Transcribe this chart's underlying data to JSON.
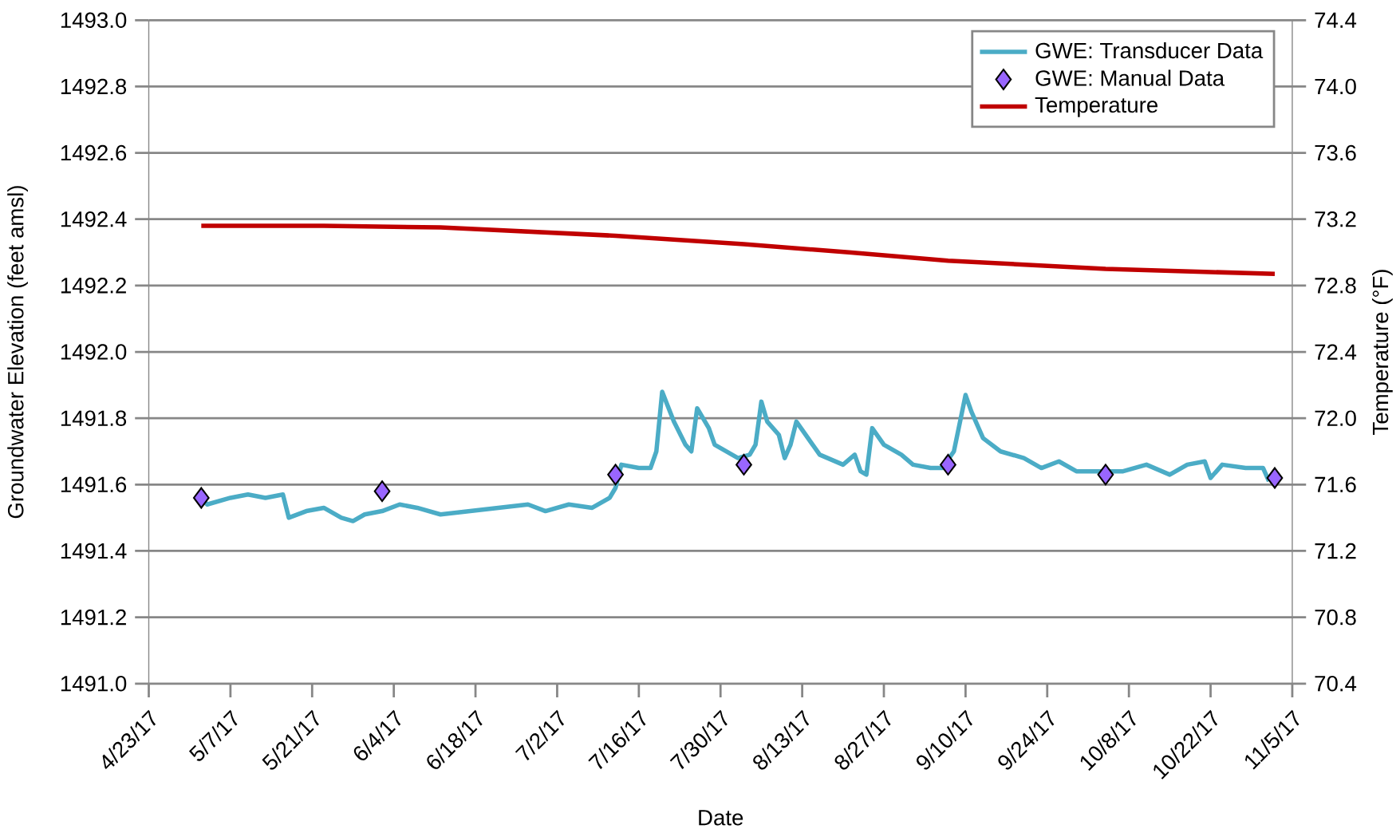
{
  "chart_data": {
    "type": "line",
    "xlabel": "Date",
    "ylabel": "Groundwater Elevation (feet amsl)",
    "y2label": "Temperature (°F)",
    "xlim": [
      "2017-04-23",
      "2017-11-05"
    ],
    "xticks": [
      {
        "value": "2017-04-23",
        "label": "4/23/17"
      },
      {
        "value": "2017-05-07",
        "label": "5/7/17"
      },
      {
        "value": "2017-05-21",
        "label": "5/21/17"
      },
      {
        "value": "2017-06-04",
        "label": "6/4/17"
      },
      {
        "value": "2017-06-18",
        "label": "6/18/17"
      },
      {
        "value": "2017-07-02",
        "label": "7/2/17"
      },
      {
        "value": "2017-07-16",
        "label": "7/16/17"
      },
      {
        "value": "2017-07-30",
        "label": "7/30/17"
      },
      {
        "value": "2017-08-13",
        "label": "8/13/17"
      },
      {
        "value": "2017-08-27",
        "label": "8/27/17"
      },
      {
        "value": "2017-09-10",
        "label": "9/10/17"
      },
      {
        "value": "2017-09-24",
        "label": "9/24/17"
      },
      {
        "value": "2017-10-08",
        "label": "10/8/17"
      },
      {
        "value": "2017-10-22",
        "label": "10/22/17"
      },
      {
        "value": "2017-11-05",
        "label": "11/5/17"
      }
    ],
    "ylim": [
      1491.0,
      1493.0
    ],
    "yticks": [
      {
        "value": 1491.0,
        "label": "1491.0"
      },
      1491.2,
      1491.4,
      1491.6,
      1491.8,
      {
        "value": 1492.0,
        "label": "1492.0"
      },
      1492.2,
      1492.4,
      1492.6,
      1492.8,
      {
        "value": 1493.0,
        "label": "1493.0"
      }
    ],
    "y2lim": [
      70.4,
      74.4
    ],
    "y2ticks": [
      70.4,
      70.8,
      71.2,
      71.6,
      {
        "value": 72.0,
        "label": "72.0"
      },
      72.4,
      72.8,
      73.2,
      73.6,
      {
        "value": 74.0,
        "label": "74.0"
      },
      74.4
    ],
    "grid": "y",
    "legend": "top right",
    "series": [
      {
        "name": "GWE: Transducer Data",
        "color": "#4bacc6",
        "x": [
          "2017-05-02",
          "2017-05-03",
          "2017-05-07",
          "2017-05-10",
          "2017-05-13",
          "2017-05-16",
          "2017-05-17",
          "2017-05-20",
          "2017-05-23",
          "2017-05-26",
          "2017-05-28",
          "2017-05-30",
          "2017-06-02",
          "2017-06-05",
          "2017-06-08",
          "2017-06-12",
          "2017-06-17",
          "2017-06-22",
          "2017-06-27",
          "2017-06-30",
          "2017-07-04",
          "2017-07-08",
          "2017-07-11",
          "2017-07-12",
          "2017-07-13",
          "2017-07-16",
          "2017-07-18",
          "2017-07-19",
          "2017-07-20",
          "2017-07-22",
          "2017-07-24",
          "2017-07-25",
          "2017-07-26",
          "2017-07-28",
          "2017-07-29",
          "2017-08-02",
          "2017-08-04",
          "2017-08-05",
          "2017-08-06",
          "2017-08-07",
          "2017-08-09",
          "2017-08-10",
          "2017-08-11",
          "2017-08-12",
          "2017-08-14",
          "2017-08-16",
          "2017-08-20",
          "2017-08-22",
          "2017-08-23",
          "2017-08-24",
          "2017-08-25",
          "2017-08-27",
          "2017-08-30",
          "2017-09-01",
          "2017-09-04",
          "2017-09-06",
          "2017-09-08",
          "2017-09-10",
          "2017-09-11",
          "2017-09-13",
          "2017-09-16",
          "2017-09-20",
          "2017-09-23",
          "2017-09-26",
          "2017-09-29",
          "2017-10-03",
          "2017-10-07",
          "2017-10-11",
          "2017-10-15",
          "2017-10-18",
          "2017-10-21",
          "2017-10-22",
          "2017-10-24",
          "2017-10-28",
          "2017-10-31",
          "2017-11-01"
        ],
        "values": [
          1491.56,
          1491.54,
          1491.56,
          1491.57,
          1491.56,
          1491.57,
          1491.5,
          1491.52,
          1491.53,
          1491.5,
          1491.49,
          1491.51,
          1491.52,
          1491.54,
          1491.53,
          1491.51,
          1491.52,
          1491.53,
          1491.54,
          1491.52,
          1491.54,
          1491.53,
          1491.56,
          1491.59,
          1491.66,
          1491.65,
          1491.65,
          1491.7,
          1491.88,
          1491.79,
          1491.72,
          1491.7,
          1491.83,
          1491.77,
          1491.72,
          1491.68,
          1491.69,
          1491.72,
          1491.85,
          1491.79,
          1491.75,
          1491.68,
          1491.72,
          1491.79,
          1491.74,
          1491.69,
          1491.66,
          1491.69,
          1491.64,
          1491.63,
          1491.77,
          1491.72,
          1491.69,
          1491.66,
          1491.65,
          1491.65,
          1491.7,
          1491.87,
          1491.82,
          1491.74,
          1491.7,
          1491.68,
          1491.65,
          1491.67,
          1491.64,
          1491.64,
          1491.64,
          1491.66,
          1491.63,
          1491.66,
          1491.67,
          1491.62,
          1491.66,
          1491.65,
          1491.65,
          1491.61
        ]
      },
      {
        "name": "GWE: Manual Data",
        "type": "scatter",
        "marker": "diamond",
        "color": "#9966ff",
        "x": [
          "2017-05-02",
          "2017-06-02",
          "2017-07-12",
          "2017-08-03",
          "2017-09-07",
          "2017-10-04",
          "2017-11-02"
        ],
        "values": [
          1491.56,
          1491.58,
          1491.63,
          1491.66,
          1491.66,
          1491.63,
          1491.62
        ]
      },
      {
        "name": "Temperature",
        "type": "line",
        "axis": "y2",
        "color": "#c00000",
        "x": [
          "2017-05-02",
          "2017-05-23",
          "2017-06-12",
          "2017-07-12",
          "2017-08-03",
          "2017-08-21",
          "2017-09-07",
          "2017-10-04",
          "2017-11-02"
        ],
        "values": [
          73.16,
          73.16,
          73.15,
          73.1,
          73.05,
          73.0,
          72.95,
          72.9,
          72.87
        ]
      }
    ]
  }
}
